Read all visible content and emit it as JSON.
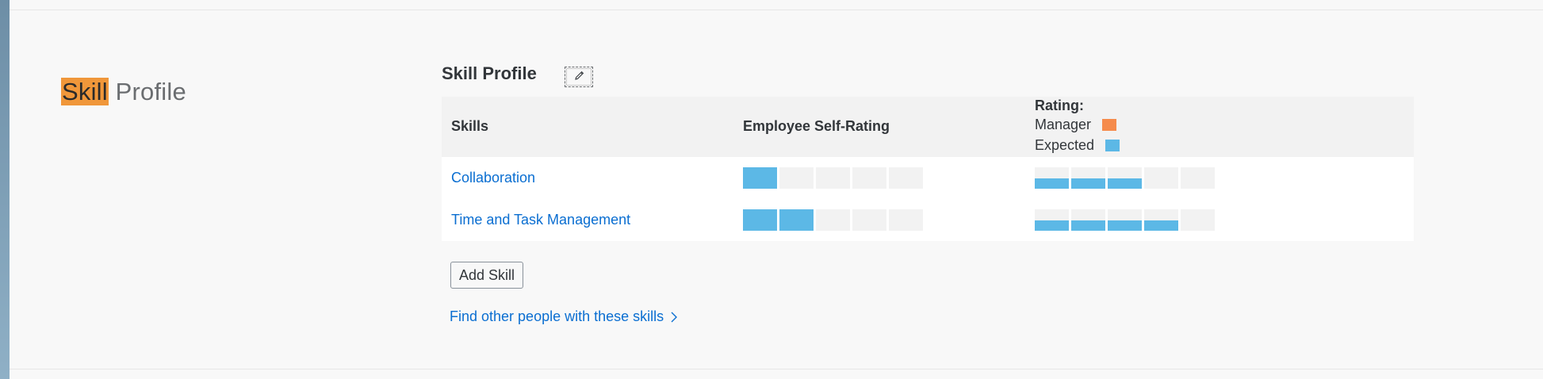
{
  "section": {
    "title_highlight": "Skill",
    "title_rest": " Profile"
  },
  "card": {
    "title": "Skill Profile",
    "edit_icon": "pencil-icon"
  },
  "table": {
    "columns": [
      "Skills",
      "Employee Self-Rating"
    ],
    "rating_header": "Rating:",
    "legend": [
      {
        "label": "Manager",
        "color": "#f58b4c"
      },
      {
        "label": "Expected",
        "color": "#5cb8e6"
      }
    ],
    "max_level": 5,
    "rows": [
      {
        "skill": "Collaboration",
        "self_rating": 1,
        "expected_rating": 3
      },
      {
        "skill": "Time and Task Management",
        "self_rating": 2,
        "expected_rating": 4
      }
    ]
  },
  "actions": {
    "add_skill": "Add Skill",
    "find_people": "Find other people with these skills",
    "find_icon": "chevron-right-icon"
  },
  "colors": {
    "accent": "#0a6ed1",
    "highlight": "#f0973a",
    "rating_fill": "#5cb8e6",
    "rating_empty": "#f2f2f2"
  }
}
